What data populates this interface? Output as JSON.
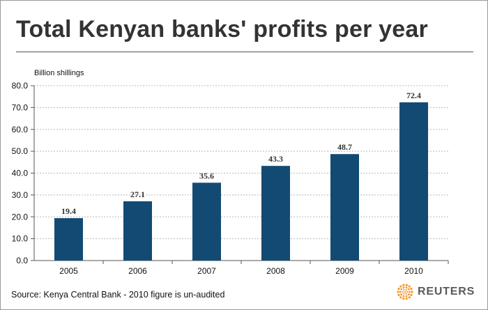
{
  "title": "Total Kenyan banks' profits per year",
  "source": "Source: Kenya Central Bank - 2010 figure is un-audited",
  "brand": {
    "name": "REUTERS",
    "icon": "reuters-logo-icon",
    "color": "#f29a2e"
  },
  "colors": {
    "bar": "#134a73",
    "grid": "#b8b8b8",
    "axis": "#555555"
  },
  "chart_data": {
    "type": "bar",
    "title": "Total Kenyan banks' profits per year",
    "ylabel": "Billion shillings",
    "xlabel": "",
    "categories": [
      "2005",
      "2006",
      "2007",
      "2008",
      "2009",
      "2010"
    ],
    "values": [
      19.4,
      27.1,
      35.6,
      43.3,
      48.7,
      72.4
    ],
    "data_labels": [
      "19.4",
      "27.1",
      "35.6",
      "43.3",
      "48.7",
      "72.4"
    ],
    "ylim": [
      0,
      80
    ],
    "yticks": [
      "0.0",
      "10.0",
      "20.0",
      "30.0",
      "40.0",
      "50.0",
      "60.0",
      "70.0",
      "80.0"
    ],
    "grid": true,
    "legend": "none"
  }
}
